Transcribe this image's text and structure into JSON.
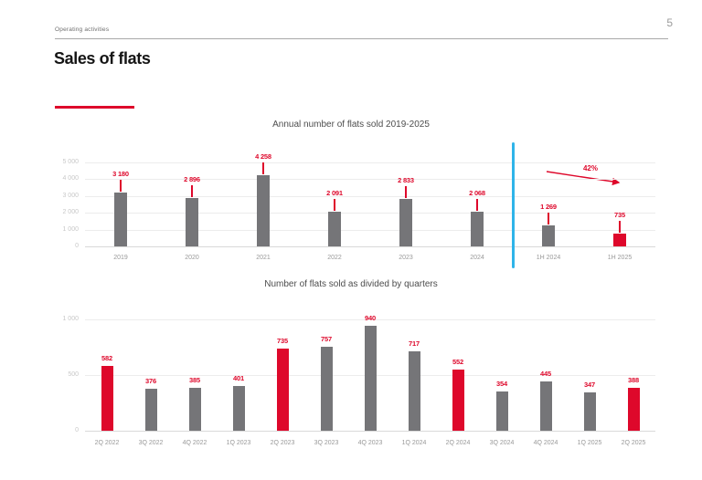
{
  "page": {
    "eyebrow": "Operating activities",
    "page_number": "5",
    "title": "Sales of flats"
  },
  "colors": {
    "accent_red": "#de082b",
    "bar_gray": "#757578",
    "divider_blue": "#2fb4e9",
    "gridline": "#ececec",
    "axis_line": "#d9d9d9",
    "y_tick_text": "#c8c8c8",
    "x_tick_text": "#999999",
    "chart_title_text": "#4d4d4d",
    "rule_gray": "#a8a8a8"
  },
  "chart_data": [
    {
      "type": "bar",
      "title": "Annual number of flats sold 2019-2025",
      "xlabel": "",
      "ylabel": "",
      "categories": [
        "2019",
        "2020",
        "2021",
        "2022",
        "2023",
        "2024",
        "1H 2024",
        "1H 2025"
      ],
      "values": [
        3180,
        2896,
        4258,
        2091,
        2833,
        2068,
        1269,
        735
      ],
      "value_labels": [
        "3 180",
        "2 896",
        "4 258",
        "2 091",
        "2 833",
        "2 068",
        "1 269",
        "735"
      ],
      "highlight_indices": [
        7
      ],
      "ylim": [
        0,
        5000
      ],
      "ytick_values": [
        5000,
        4000,
        3000,
        2000,
        1000,
        0
      ],
      "ytick_labels": [
        "5 000",
        "4 000",
        "3 000",
        "2 000",
        "1 000",
        "0"
      ],
      "grid": true,
      "legend": false,
      "divider_after_index": 5,
      "annotation": {
        "text": "42%"
      }
    },
    {
      "type": "bar",
      "title": "Number of flats sold as divided by quarters",
      "xlabel": "",
      "ylabel": "",
      "categories": [
        "2Q 2022",
        "3Q 2022",
        "4Q 2022",
        "1Q 2023",
        "2Q 2023",
        "3Q 2023",
        "4Q 2023",
        "1Q 2024",
        "2Q 2024",
        "3Q 2024",
        "4Q 2024",
        "1Q 2025",
        "2Q 2025"
      ],
      "values": [
        582,
        376,
        385,
        401,
        735,
        757,
        940,
        717,
        552,
        354,
        445,
        347,
        388
      ],
      "value_labels": [
        "582",
        "376",
        "385",
        "401",
        "735",
        "757",
        "940",
        "717",
        "552",
        "354",
        "445",
        "347",
        "388"
      ],
      "highlight_indices": [
        0,
        4,
        8,
        12
      ],
      "ylim": [
        0,
        1000
      ],
      "ytick_values": [
        1000,
        500,
        0
      ],
      "ytick_labels": [
        "1 000",
        "500",
        "0"
      ],
      "grid": true,
      "legend": false
    }
  ]
}
